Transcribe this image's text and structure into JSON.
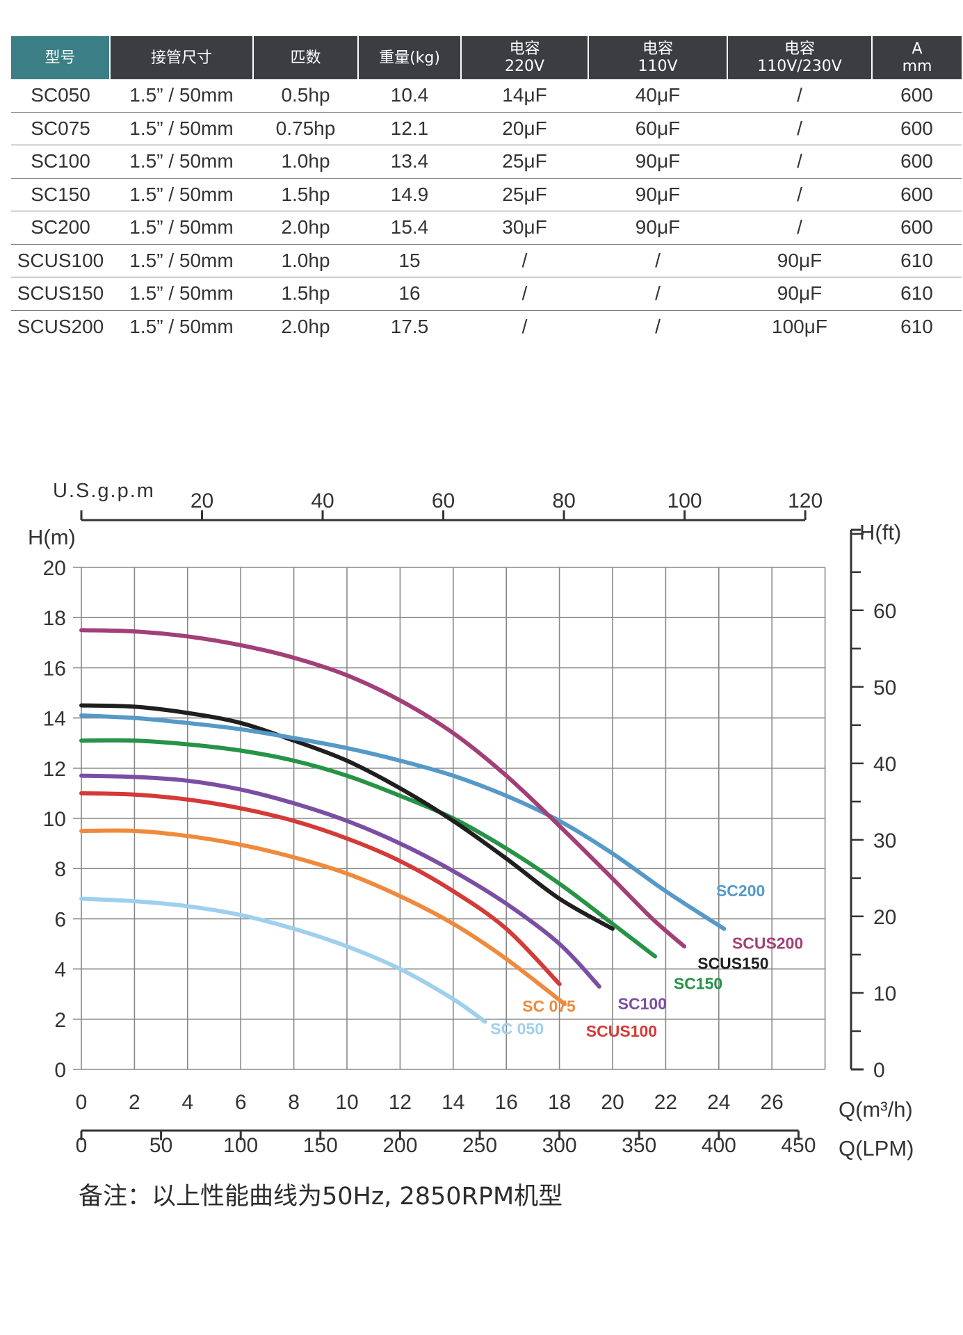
{
  "table": {
    "columns": [
      {
        "l1": "型号",
        "l2": ""
      },
      {
        "l1": "接管尺寸",
        "l2": ""
      },
      {
        "l1": "匹数",
        "l2": ""
      },
      {
        "l1": "重量(kg)",
        "l2": ""
      },
      {
        "l1": "电容",
        "l2": "220V"
      },
      {
        "l1": "电容",
        "l2": "110V"
      },
      {
        "l1": "电容",
        "l2": "110V/230V"
      },
      {
        "l1": "A",
        "l2": "mm"
      }
    ],
    "rows": [
      [
        "SC050",
        "1.5” / 50mm",
        "0.5hp",
        "10.4",
        "14μF",
        "40μF",
        "/",
        "600"
      ],
      [
        "SC075",
        "1.5” / 50mm",
        "0.75hp",
        "12.1",
        "20μF",
        "60μF",
        "/",
        "600"
      ],
      [
        "SC100",
        "1.5” / 50mm",
        "1.0hp",
        "13.4",
        "25μF",
        "90μF",
        "/",
        "600"
      ],
      [
        "SC150",
        "1.5” / 50mm",
        "1.5hp",
        "14.9",
        "25μF",
        "90μF",
        "/",
        "600"
      ],
      [
        "SC200",
        "1.5” / 50mm",
        "2.0hp",
        "15.4",
        "30μF",
        "90μF",
        "/",
        "600"
      ],
      [
        "SCUS100",
        "1.5” / 50mm",
        "1.0hp",
        "15",
        "/",
        "/",
        "90μF",
        "610"
      ],
      [
        "SCUS150",
        "1.5” / 50mm",
        "1.5hp",
        "16",
        "/",
        "/",
        "90μF",
        "610"
      ],
      [
        "SCUS200",
        "1.5” / 50mm",
        "2.0hp",
        "17.5",
        "/",
        "/",
        "100μF",
        "610"
      ]
    ]
  },
  "colors": {
    "header_bg": "#3b3d40",
    "header_highlight": "#3c7f86",
    "grid": "#888888"
  },
  "chart_data": {
    "type": "line",
    "title": "",
    "xlabel": "Q(m³/h)",
    "ylabel": "H(m)",
    "xlim": [
      0,
      28
    ],
    "ylim": [
      0,
      20
    ],
    "grid": true,
    "x_ticks": [
      0,
      2,
      4,
      6,
      8,
      10,
      12,
      14,
      16,
      18,
      20,
      22,
      24,
      26
    ],
    "y_ticks": [
      0,
      2,
      4,
      6,
      8,
      10,
      12,
      14,
      16,
      18,
      20
    ],
    "secondary_axes": {
      "top": {
        "label": "U.S.g.p.m",
        "ticks": [
          20,
          40,
          60,
          80,
          100,
          120
        ]
      },
      "right": {
        "label": "H(ft)",
        "ticks": [
          0,
          10,
          20,
          30,
          40,
          50,
          60
        ]
      },
      "bottom2": {
        "label": "Q(LPM)",
        "ticks": [
          0,
          50,
          100,
          150,
          200,
          250,
          300,
          350,
          400,
          450
        ]
      }
    },
    "series": [
      {
        "name": "SC 050",
        "color": "#9ed0ee",
        "label_text": "SC 050",
        "label_at": [
          15.4,
          1.4
        ],
        "points": [
          [
            0,
            6.8
          ],
          [
            2,
            6.7
          ],
          [
            4,
            6.5
          ],
          [
            6,
            6.15
          ],
          [
            8,
            5.6
          ],
          [
            10,
            4.9
          ],
          [
            12,
            4.0
          ],
          [
            14,
            2.8
          ],
          [
            15.2,
            1.9
          ]
        ]
      },
      {
        "name": "SC 075",
        "color": "#ef8a3c",
        "label_text": "SC 075",
        "label_at": [
          16.6,
          2.3
        ],
        "points": [
          [
            0,
            9.5
          ],
          [
            2,
            9.5
          ],
          [
            4,
            9.3
          ],
          [
            6,
            8.95
          ],
          [
            8,
            8.45
          ],
          [
            10,
            7.8
          ],
          [
            12,
            6.9
          ],
          [
            14,
            5.8
          ],
          [
            16,
            4.4
          ],
          [
            18.2,
            2.6
          ]
        ]
      },
      {
        "name": "SCUS100",
        "color": "#d43a37",
        "label_text": "SCUS100",
        "label_at": [
          19.0,
          1.3
        ],
        "points": [
          [
            0,
            11.0
          ],
          [
            2,
            10.95
          ],
          [
            4,
            10.75
          ],
          [
            6,
            10.4
          ],
          [
            8,
            9.9
          ],
          [
            10,
            9.2
          ],
          [
            12,
            8.3
          ],
          [
            14,
            7.1
          ],
          [
            16,
            5.6
          ],
          [
            18,
            3.4
          ]
        ]
      },
      {
        "name": "SC100",
        "color": "#7b4ea4",
        "label_text": "SC100",
        "label_at": [
          20.2,
          2.4
        ],
        "points": [
          [
            0,
            11.7
          ],
          [
            2,
            11.65
          ],
          [
            4,
            11.5
          ],
          [
            6,
            11.15
          ],
          [
            8,
            10.6
          ],
          [
            10,
            9.9
          ],
          [
            12,
            9.0
          ],
          [
            14,
            7.9
          ],
          [
            16,
            6.6
          ],
          [
            18,
            5.0
          ],
          [
            19.5,
            3.3
          ]
        ]
      },
      {
        "name": "SC150",
        "color": "#269346",
        "label_text": "SC150",
        "label_at": [
          22.3,
          3.2
        ],
        "points": [
          [
            0,
            13.1
          ],
          [
            2,
            13.1
          ],
          [
            4,
            12.95
          ],
          [
            6,
            12.7
          ],
          [
            8,
            12.3
          ],
          [
            10,
            11.7
          ],
          [
            12,
            10.9
          ],
          [
            14,
            10.0
          ],
          [
            16,
            8.8
          ],
          [
            18,
            7.4
          ],
          [
            20,
            5.8
          ],
          [
            21.6,
            4.5
          ]
        ]
      },
      {
        "name": "SCUS150",
        "color": "#1f1f1f",
        "label_text": "SCUS150",
        "label_at": [
          23.2,
          4.0
        ],
        "points": [
          [
            0,
            14.5
          ],
          [
            2,
            14.45
          ],
          [
            4,
            14.2
          ],
          [
            6,
            13.8
          ],
          [
            8,
            13.1
          ],
          [
            10,
            12.3
          ],
          [
            12,
            11.2
          ],
          [
            14,
            9.9
          ],
          [
            16,
            8.4
          ],
          [
            18,
            6.8
          ],
          [
            20,
            5.6
          ]
        ]
      },
      {
        "name": "SC200",
        "color": "#5599c8",
        "label_text": "SC200",
        "label_at": [
          23.9,
          6.9
        ],
        "points": [
          [
            0,
            14.1
          ],
          [
            2,
            14.0
          ],
          [
            4,
            13.8
          ],
          [
            6,
            13.55
          ],
          [
            8,
            13.2
          ],
          [
            10,
            12.8
          ],
          [
            12,
            12.3
          ],
          [
            14,
            11.7
          ],
          [
            16,
            10.9
          ],
          [
            18,
            9.9
          ],
          [
            20,
            8.6
          ],
          [
            22,
            7.1
          ],
          [
            24.2,
            5.6
          ]
        ]
      },
      {
        "name": "SCUS200",
        "color": "#a23f78",
        "label_text": "SCUS200",
        "label_at": [
          24.5,
          4.8
        ],
        "points": [
          [
            0,
            17.5
          ],
          [
            2,
            17.45
          ],
          [
            4,
            17.25
          ],
          [
            6,
            16.9
          ],
          [
            8,
            16.4
          ],
          [
            10,
            15.7
          ],
          [
            12,
            14.7
          ],
          [
            14,
            13.4
          ],
          [
            16,
            11.7
          ],
          [
            18,
            9.7
          ],
          [
            20,
            7.6
          ],
          [
            21.5,
            6.0
          ],
          [
            22.7,
            4.9
          ]
        ]
      }
    ]
  },
  "note": "备注：以上性能曲线为50Hz, 2850RPM机型"
}
